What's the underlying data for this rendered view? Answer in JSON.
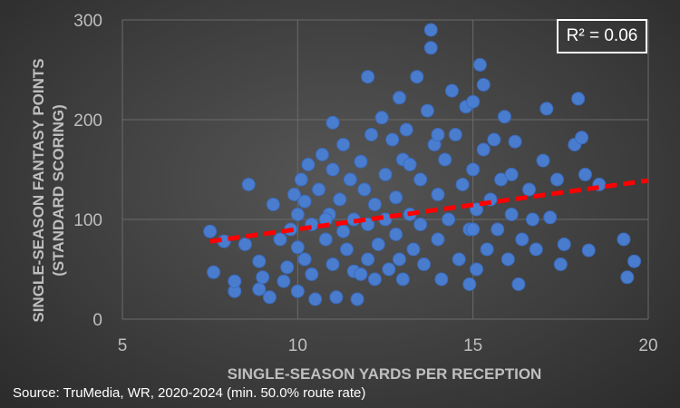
{
  "chart_data": {
    "type": "scatter",
    "title": "",
    "xlabel": "SINGLE-SEASON YARDS PER RECEPTION",
    "ylabel_line1": "SINGLE-SEASON FANTASY POINTS",
    "ylabel_line2": "(STANDARD SCORING)",
    "xlim": [
      5,
      20
    ],
    "ylim": [
      0,
      300
    ],
    "xticks": [
      "5",
      "10",
      "15",
      "20"
    ],
    "yticks": [
      "0",
      "100",
      "200",
      "300"
    ],
    "annotation": "R² = 0.06",
    "trendline": {
      "x": [
        7.5,
        20
      ],
      "y": [
        78,
        139
      ],
      "color": "#ff0000",
      "style": "dashed"
    },
    "point_color": "#4a7fd4",
    "points": [
      [
        7.5,
        88
      ],
      [
        7.6,
        47
      ],
      [
        7.9,
        78
      ],
      [
        8.2,
        28
      ],
      [
        8.2,
        38
      ],
      [
        8.5,
        75
      ],
      [
        8.6,
        135
      ],
      [
        8.9,
        58
      ],
      [
        8.9,
        30
      ],
      [
        9.0,
        42
      ],
      [
        9.2,
        22
      ],
      [
        9.3,
        115
      ],
      [
        9.5,
        80
      ],
      [
        9.6,
        38
      ],
      [
        9.7,
        52
      ],
      [
        9.8,
        90
      ],
      [
        9.9,
        125
      ],
      [
        10.0,
        105
      ],
      [
        10.0,
        72
      ],
      [
        10.0,
        28
      ],
      [
        10.1,
        140
      ],
      [
        10.2,
        118
      ],
      [
        10.2,
        60
      ],
      [
        10.3,
        155
      ],
      [
        10.4,
        95
      ],
      [
        10.4,
        45
      ],
      [
        10.5,
        20
      ],
      [
        10.6,
        130
      ],
      [
        10.7,
        165
      ],
      [
        10.8,
        80
      ],
      [
        10.9,
        105
      ],
      [
        11.0,
        150
      ],
      [
        11.0,
        197
      ],
      [
        11.0,
        55
      ],
      [
        11.1,
        22
      ],
      [
        11.2,
        120
      ],
      [
        11.3,
        175
      ],
      [
        11.3,
        88
      ],
      [
        11.4,
        70
      ],
      [
        11.5,
        140
      ],
      [
        11.6,
        100
      ],
      [
        11.6,
        48
      ],
      [
        11.7,
        20
      ],
      [
        11.8,
        158
      ],
      [
        11.9,
        130
      ],
      [
        12.0,
        243
      ],
      [
        12.0,
        95
      ],
      [
        12.0,
        60
      ],
      [
        12.1,
        185
      ],
      [
        12.2,
        115
      ],
      [
        12.3,
        75
      ],
      [
        12.4,
        202
      ],
      [
        12.5,
        145
      ],
      [
        12.5,
        100
      ],
      [
        12.6,
        50
      ],
      [
        12.7,
        180
      ],
      [
        12.8,
        122
      ],
      [
        12.8,
        85
      ],
      [
        12.9,
        222
      ],
      [
        13.0,
        160
      ],
      [
        13.0,
        40
      ],
      [
        13.1,
        190
      ],
      [
        13.2,
        105
      ],
      [
        13.3,
        70
      ],
      [
        13.4,
        243
      ],
      [
        13.5,
        140
      ],
      [
        13.5,
        95
      ],
      [
        13.6,
        55
      ],
      [
        13.7,
        209
      ],
      [
        13.8,
        290
      ],
      [
        13.8,
        272
      ],
      [
        13.9,
        175
      ],
      [
        14.0,
        125
      ],
      [
        14.0,
        80
      ],
      [
        14.1,
        40
      ],
      [
        14.2,
        160
      ],
      [
        14.3,
        100
      ],
      [
        14.4,
        229
      ],
      [
        14.5,
        185
      ],
      [
        14.6,
        60
      ],
      [
        14.7,
        135
      ],
      [
        14.8,
        213
      ],
      [
        14.9,
        90
      ],
      [
        15.0,
        218
      ],
      [
        15.0,
        150
      ],
      [
        15.1,
        110
      ],
      [
        15.1,
        50
      ],
      [
        15.2,
        255
      ],
      [
        15.3,
        235
      ],
      [
        15.3,
        170
      ],
      [
        15.4,
        70
      ],
      [
        15.5,
        120
      ],
      [
        15.6,
        180
      ],
      [
        15.7,
        90
      ],
      [
        15.8,
        140
      ],
      [
        15.9,
        203
      ],
      [
        16.0,
        60
      ],
      [
        16.1,
        105
      ],
      [
        16.2,
        178
      ],
      [
        16.3,
        35
      ],
      [
        16.4,
        80
      ],
      [
        16.6,
        130
      ],
      [
        16.7,
        100
      ],
      [
        16.8,
        70
      ],
      [
        17.0,
        159
      ],
      [
        17.1,
        211
      ],
      [
        17.2,
        102
      ],
      [
        17.4,
        140
      ],
      [
        17.5,
        55
      ],
      [
        17.6,
        75
      ],
      [
        17.9,
        175
      ],
      [
        18.0,
        221
      ],
      [
        18.1,
        182
      ],
      [
        18.2,
        145
      ],
      [
        18.3,
        69
      ],
      [
        18.6,
        135
      ],
      [
        19.3,
        80
      ],
      [
        19.4,
        42
      ],
      [
        19.6,
        58
      ],
      [
        12.2,
        40
      ],
      [
        12.9,
        60
      ],
      [
        11.8,
        45
      ],
      [
        14.9,
        35
      ],
      [
        16.1,
        145
      ],
      [
        10.8,
        100
      ],
      [
        13.2,
        155
      ],
      [
        14.0,
        185
      ],
      [
        15.0,
        90
      ]
    ]
  },
  "source_text": "Source: TruMedia, WR, 2020-2024 (min. 50.0% route rate)"
}
